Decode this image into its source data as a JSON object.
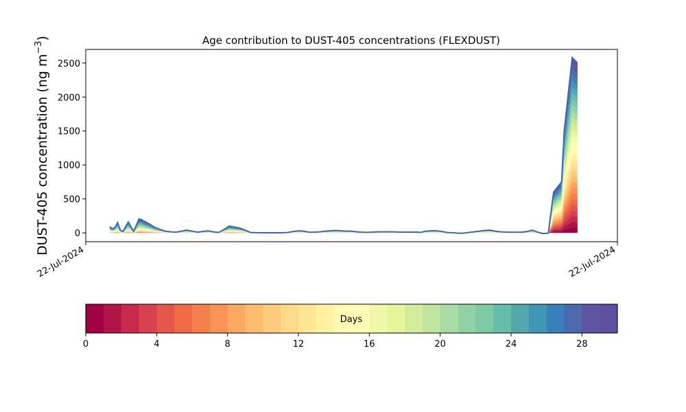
{
  "chart_data": {
    "type": "area",
    "title": "Age contribution to DUST-405 concentrations (FLEXDUST)",
    "ylabel_main": "DUST-405 concentration (ng m",
    "ylabel_sup": "−3",
    "ylabel_close": ")",
    "xlabel": "",
    "x_tick_labels": [
      "22-Jul-2024",
      "22-Jul-2024"
    ],
    "x_range": [
      0,
      1
    ],
    "y_ticks": [
      0,
      500,
      1000,
      1500,
      2000,
      2500
    ],
    "ylim": [
      -130,
      2700
    ],
    "grid": false,
    "colorbar": {
      "label": "Days",
      "range": [
        0,
        30
      ],
      "ticks": [
        0,
        4,
        8,
        12,
        16,
        20,
        24,
        28
      ],
      "colors": [
        "#9e0142",
        "#b31446",
        "#c92a4b",
        "#d8414d",
        "#e4564a",
        "#ef6a45",
        "#f47e4b",
        "#f89355",
        "#fba862",
        "#fdbc6f",
        "#fdcb7e",
        "#fed98b",
        "#fee695",
        "#fff2a3",
        "#fffbb3",
        "#fbfdb4",
        "#f1f9a9",
        "#e6f599",
        "#d3ed9b",
        "#c0e5a0",
        "#aadba4",
        "#93d1a4",
        "#7dc8a5",
        "#66bda7",
        "#53a8ae",
        "#4195b5",
        "#3a80b8",
        "#4b69ad",
        "#5d54a4",
        "#5e4fa2"
      ]
    },
    "x": [
      0.045,
      0.05,
      0.055,
      0.06,
      0.065,
      0.07,
      0.075,
      0.08,
      0.085,
      0.09,
      0.095,
      0.1,
      0.105,
      0.11,
      0.12,
      0.13,
      0.14,
      0.15,
      0.16,
      0.17,
      0.18,
      0.19,
      0.2,
      0.21,
      0.22,
      0.23,
      0.24,
      0.25,
      0.26,
      0.27,
      0.28,
      0.29,
      0.3,
      0.31,
      0.32,
      0.33,
      0.34,
      0.35,
      0.36,
      0.37,
      0.38,
      0.39,
      0.4,
      0.41,
      0.42,
      0.43,
      0.44,
      0.45,
      0.46,
      0.47,
      0.48,
      0.49,
      0.5,
      0.51,
      0.52,
      0.53,
      0.54,
      0.55,
      0.56,
      0.57,
      0.58,
      0.59,
      0.6,
      0.61,
      0.62,
      0.63,
      0.64,
      0.65,
      0.66,
      0.67,
      0.68,
      0.69,
      0.7,
      0.71,
      0.72,
      0.73,
      0.74,
      0.75,
      0.76,
      0.77,
      0.78,
      0.79,
      0.8,
      0.81,
      0.82,
      0.83,
      0.84,
      0.85,
      0.86,
      0.87,
      0.88,
      0.895,
      0.9,
      0.915,
      0.925
    ],
    "total": [
      90,
      60,
      80,
      150,
      40,
      20,
      90,
      160,
      90,
      20,
      110,
      205,
      195,
      170,
      130,
      80,
      50,
      25,
      15,
      10,
      25,
      40,
      25,
      10,
      20,
      30,
      15,
      5,
      50,
      100,
      85,
      70,
      40,
      5,
      3,
      2,
      2,
      2,
      2,
      2,
      5,
      20,
      30,
      25,
      10,
      10,
      15,
      25,
      30,
      35,
      30,
      25,
      25,
      15,
      10,
      8,
      12,
      15,
      15,
      15,
      15,
      12,
      12,
      12,
      12,
      8,
      25,
      30,
      30,
      20,
      5,
      2,
      -5,
      -5,
      5,
      15,
      25,
      35,
      40,
      25,
      15,
      12,
      10,
      10,
      10,
      20,
      40,
      10,
      -10,
      -5,
      600,
      750,
      1500,
      2580,
      2500
    ],
    "young_fraction_note": ""
  }
}
